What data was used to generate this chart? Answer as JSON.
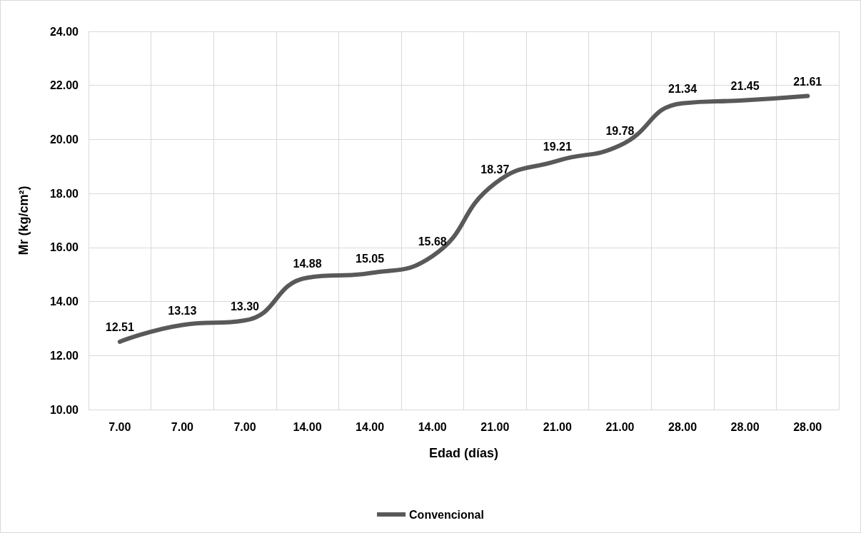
{
  "chart_data": {
    "type": "line",
    "xlabel": "Edad (días)",
    "ylabel": "Mr (kg/cm²)",
    "categories": [
      "7.00",
      "7.00",
      "7.00",
      "14.00",
      "14.00",
      "14.00",
      "21.00",
      "21.00",
      "21.00",
      "28.00",
      "28.00",
      "28.00"
    ],
    "series": [
      {
        "name": "Convencional",
        "color": "#595959",
        "values": [
          12.51,
          13.13,
          13.3,
          14.88,
          15.05,
          15.68,
          18.37,
          19.21,
          19.78,
          21.34,
          21.45,
          21.61
        ],
        "value_labels": [
          "12.51",
          "13.13",
          "13.30",
          "14.88",
          "15.05",
          "15.68",
          "18.37",
          "19.21",
          "19.78",
          "21.34",
          "21.45",
          "21.61"
        ]
      }
    ],
    "ylim": [
      10,
      24
    ],
    "yticks": [
      {
        "value": 10,
        "label": "10.00"
      },
      {
        "value": 12,
        "label": "12.00"
      },
      {
        "value": 14,
        "label": "14.00"
      },
      {
        "value": 16,
        "label": "16.00"
      },
      {
        "value": 18,
        "label": "18.00"
      },
      {
        "value": 20,
        "label": "20.00"
      },
      {
        "value": 22,
        "label": "22.00"
      },
      {
        "value": 24,
        "label": "24.00"
      }
    ],
    "grid": true,
    "legend": "bottom",
    "line_style": "solid"
  }
}
